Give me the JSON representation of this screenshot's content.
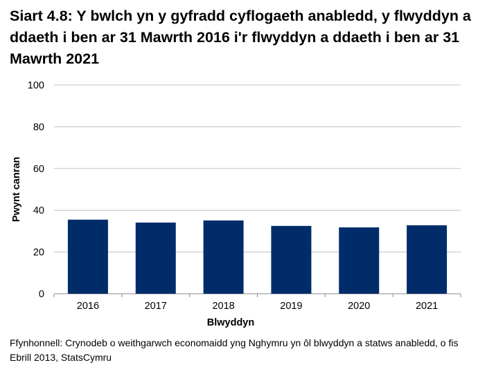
{
  "chart_data": {
    "type": "bar",
    "title": "Siart 4.8: Y bwlch yn y gyfradd cyflogaeth anabledd, y flwyddyn a ddaeth i ben ar 31 Mawrth 2016 i'r flwyddyn a ddaeth i ben ar 31 Mawrth 2021",
    "categories": [
      "2016",
      "2017",
      "2018",
      "2019",
      "2020",
      "2021"
    ],
    "values": [
      35.5,
      34.1,
      35.1,
      32.5,
      31.8,
      32.8
    ],
    "xlabel": "Blwyddyn",
    "ylabel": "Pwynt canran",
    "ylim": [
      0,
      100
    ],
    "yticks": [
      "0",
      "20",
      "40",
      "60",
      "80",
      "100"
    ],
    "grid": true,
    "bar_color": "#002D6A",
    "grid_color": "#C0C0C0"
  },
  "source": "Ffynhonnell: Crynodeb o weithgarwch economaidd yng Nghymru yn ôl blwyddyn a statws anabledd, o fis Ebrill 2013, StatsCymru"
}
